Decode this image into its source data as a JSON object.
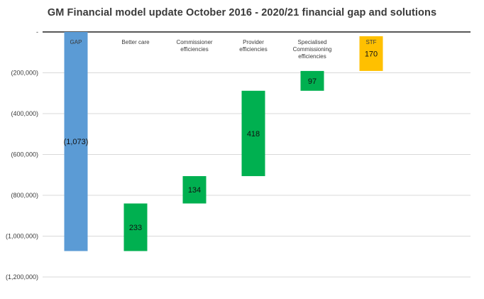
{
  "chart_data": {
    "type": "bar",
    "subtype": "waterfall",
    "title": "GM Financial  model update October 2016  -  2020/21  financial gap and solutions",
    "xlabel": "",
    "ylabel": "",
    "ylim": [
      -1200000,
      0
    ],
    "y_ticks": [
      0,
      -200000,
      -400000,
      -600000,
      -800000,
      -1000000,
      -1200000
    ],
    "y_tick_labels": [
      "-",
      "(200,000)",
      "(400,000)",
      "(600,000)",
      "(800,000)",
      "(1,000,000)",
      "(1,200,000)"
    ],
    "grid": true,
    "legend": "none",
    "categories": [
      "GAP",
      "Better care",
      "Commissioner efficiencies",
      "Provider efficiencies",
      "Specialised Commissioning efficiencies",
      "STF"
    ],
    "category_labels": [
      [
        "GAP"
      ],
      [
        "Better care"
      ],
      [
        "Commissioner",
        "efficiencies"
      ],
      [
        "Provider",
        "efficiencies"
      ],
      [
        "Specialised",
        "Commissioning",
        "efficiencies"
      ],
      [
        "STF"
      ]
    ],
    "bars": [
      {
        "start": 0,
        "end": -1073000,
        "label": "(1,073)",
        "color": "#5b9bd5"
      },
      {
        "start": -1073000,
        "end": -840000,
        "label": "233",
        "color": "#00b050"
      },
      {
        "start": -840000,
        "end": -706000,
        "label": "134",
        "color": "#00b050"
      },
      {
        "start": -706000,
        "end": -288000,
        "label": "418",
        "color": "#00b050"
      },
      {
        "start": -288000,
        "end": -191000,
        "label": "97",
        "color": "#00b050"
      },
      {
        "start": -191000,
        "end": -21000,
        "label": "170",
        "color": "#ffc000"
      }
    ]
  }
}
